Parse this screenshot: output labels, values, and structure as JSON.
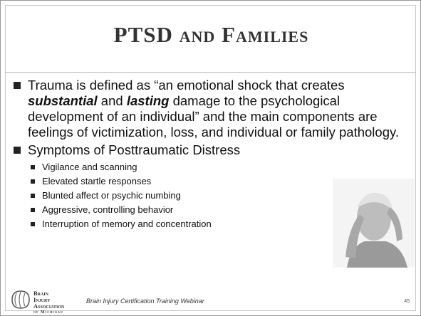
{
  "title": "PTSD and Families",
  "bullets": [
    {
      "runs": [
        "Trauma is defined as “an emotional shock that creates ",
        "substantial",
        " and ",
        "lasting",
        " damage to the psychological development of an individual” and the main components are feelings of victimization, loss, and individual or family pathology."
      ]
    },
    {
      "text": "Symptoms of Posttraumatic Distress",
      "items": [
        "Vigilance and scanning",
        "Elevated startle responses",
        "Blunted affect or psychic numbing",
        "Aggressive, controlling behavior",
        "Interruption of memory and concentration"
      ]
    }
  ],
  "footer": {
    "logo": [
      "Brain Injury",
      "Association",
      "of Michigan"
    ],
    "text": "Brain Injury Certification Training Webinar",
    "page": "45"
  }
}
